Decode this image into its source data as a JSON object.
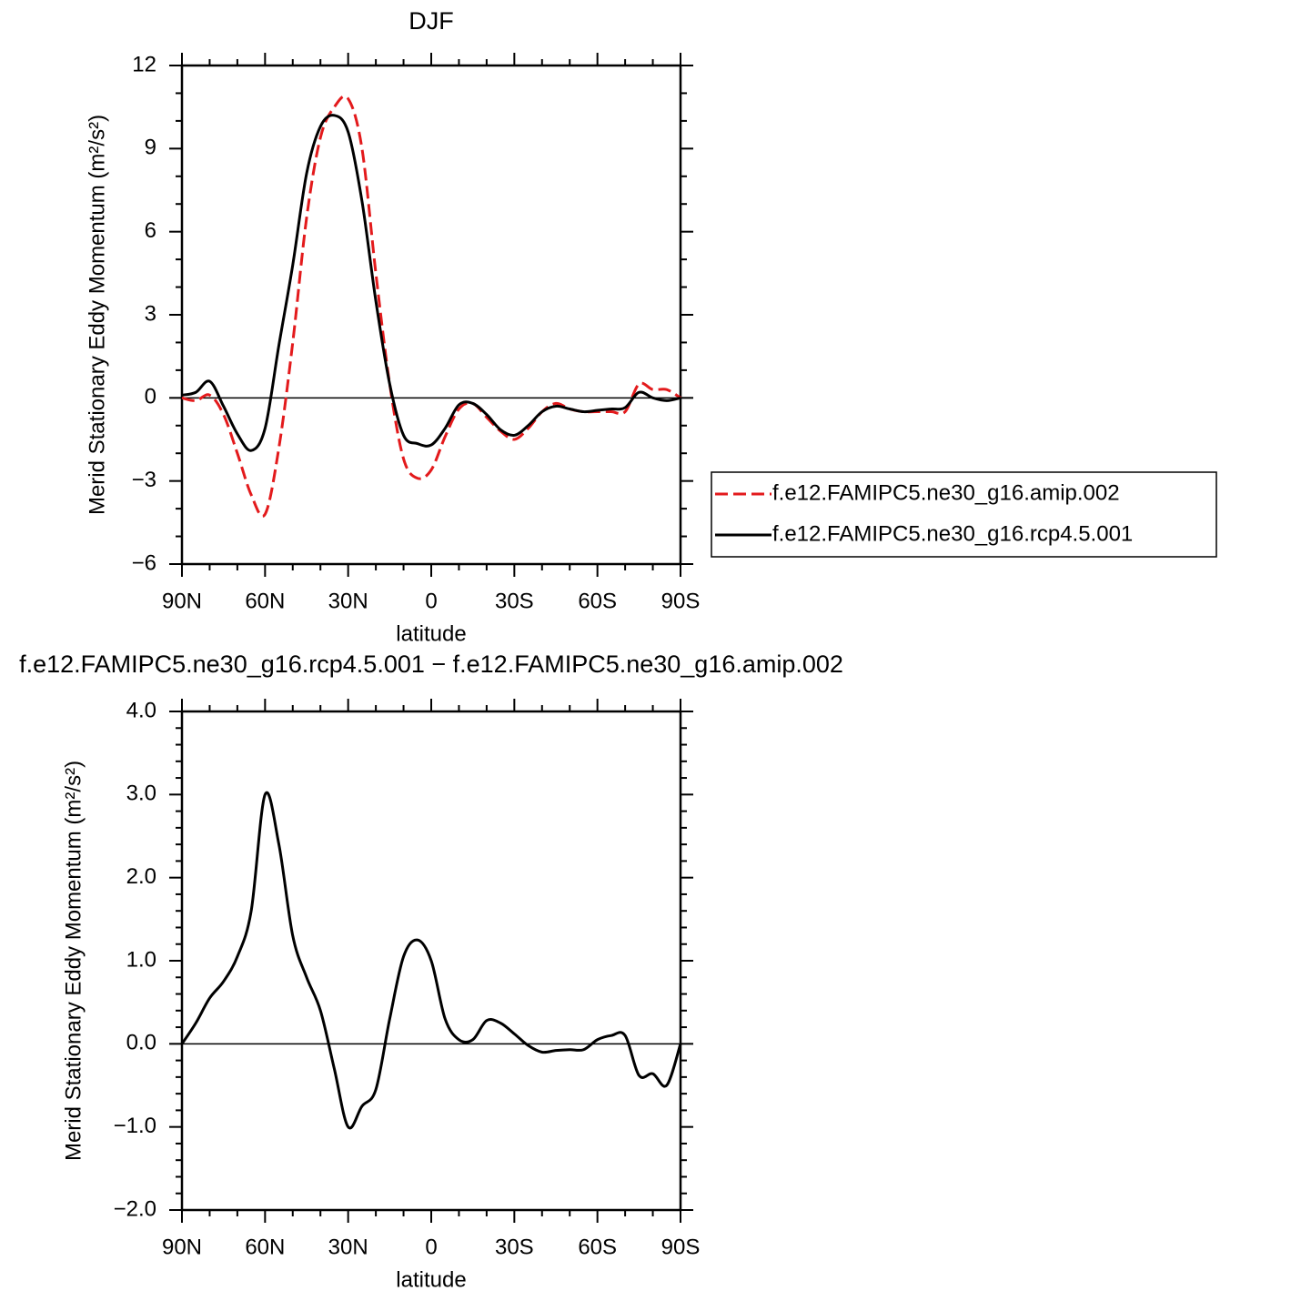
{
  "chart_data": [
    {
      "type": "line",
      "title": "DJF",
      "x_label": "latitude",
      "y_label": "Merid Stationary Eddy Momentum (m²/s²)",
      "x": [
        90,
        85,
        80,
        75,
        70,
        65,
        60,
        55,
        50,
        45,
        40,
        35,
        30,
        25,
        20,
        15,
        10,
        5,
        0,
        -5,
        -10,
        -15,
        -20,
        -25,
        -30,
        -35,
        -40,
        -45,
        -50,
        -55,
        -60,
        -65,
        -70,
        -75,
        -80,
        -85,
        -90
      ],
      "series": [
        {
          "name": "f.e12.FAMIPC5.ne30_g16.amip.002",
          "color": "#e31a1c",
          "dashed": true,
          "values": [
            0,
            -0.1,
            0.1,
            -0.6,
            -2.0,
            -3.5,
            -4.2,
            -1.8,
            2.0,
            6.5,
            9.4,
            10.5,
            10.8,
            9.0,
            4.5,
            0.5,
            -2.2,
            -2.9,
            -2.6,
            -1.4,
            -0.4,
            -0.2,
            -0.7,
            -1.2,
            -1.5,
            -1.1,
            -0.5,
            -0.2,
            -0.4,
            -0.5,
            -0.5,
            -0.5,
            -0.5,
            0.5,
            0.3,
            0.3,
            0
          ]
        },
        {
          "name": "f.e12.FAMIPC5.ne30_g16.rcp4.5.001",
          "color": "#000000",
          "dashed": false,
          "values": [
            0.1,
            0.2,
            0.6,
            -0.3,
            -1.3,
            -1.9,
            -1.1,
            1.9,
            4.8,
            8.1,
            9.8,
            10.2,
            9.6,
            7.1,
            3.5,
            0.5,
            -1.35,
            -1.65,
            -1.7,
            -1.1,
            -0.25,
            -0.2,
            -0.6,
            -1.15,
            -1.35,
            -1.0,
            -0.5,
            -0.3,
            -0.4,
            -0.5,
            -0.45,
            -0.4,
            -0.35,
            0.2,
            0,
            -0.1,
            0
          ]
        }
      ],
      "xlim": [
        90,
        -90
      ],
      "xticks": [
        {
          "value": 90,
          "label": "90N"
        },
        {
          "value": 60,
          "label": "60N"
        },
        {
          "value": 30,
          "label": "30N"
        },
        0,
        {
          "value": -30,
          "label": "30S"
        },
        {
          "value": -60,
          "label": "60S"
        },
        {
          "value": -90,
          "label": "90S"
        }
      ],
      "ylim": [
        -6,
        12
      ],
      "yticks": [
        {
          "value": -6,
          "label": "−6"
        },
        {
          "value": -3,
          "label": "−3"
        },
        0,
        3,
        6,
        9,
        12
      ],
      "legend": "right"
    },
    {
      "type": "line",
      "title": "f.e12.FAMIPC5.ne30_g16.rcp4.5.001 − f.e12.FAMIPC5.ne30_g16.amip.002",
      "x_label": "latitude",
      "y_label": "Merid Stationary Eddy Momentum (m²/s²)",
      "x": [
        90,
        85,
        80,
        75,
        70,
        65,
        60,
        55,
        50,
        45,
        40,
        35,
        30,
        25,
        20,
        15,
        10,
        5,
        0,
        -5,
        -10,
        -15,
        -20,
        -25,
        -30,
        -35,
        -40,
        -45,
        -50,
        -55,
        -60,
        -65,
        -70,
        -75,
        -80,
        -85,
        -90
      ],
      "values": [
        0,
        0.25,
        0.55,
        0.75,
        1.05,
        1.6,
        3.0,
        2.4,
        1.3,
        0.8,
        0.4,
        -0.3,
        -1.0,
        -0.75,
        -0.55,
        0.3,
        1.05,
        1.25,
        1.0,
        0.3,
        0.05,
        0.05,
        0.28,
        0.25,
        0.12,
        -0.02,
        -0.1,
        -0.08,
        -0.07,
        -0.07,
        0.05,
        0.1,
        0.1,
        -0.38,
        -0.36,
        -0.5,
        0
      ],
      "color": "#000000",
      "xlim": [
        90,
        -90
      ],
      "xticks": [
        {
          "value": 90,
          "label": "90N"
        },
        {
          "value": 60,
          "label": "60N"
        },
        {
          "value": 30,
          "label": "30N"
        },
        0,
        {
          "value": -30,
          "label": "30S"
        },
        {
          "value": -60,
          "label": "60S"
        },
        {
          "value": -90,
          "label": "90S"
        }
      ],
      "ylim": [
        -2,
        4
      ],
      "yticks": [
        {
          "value": -2,
          "label": "−2.0"
        },
        {
          "value": -1,
          "label": "−1.0"
        },
        {
          "value": 0,
          "label": "0.0"
        },
        {
          "value": 1,
          "label": "1.0"
        },
        {
          "value": 2,
          "label": "2.0"
        },
        {
          "value": 3,
          "label": "3.0"
        },
        {
          "value": 4,
          "label": "4.0"
        }
      ]
    }
  ]
}
